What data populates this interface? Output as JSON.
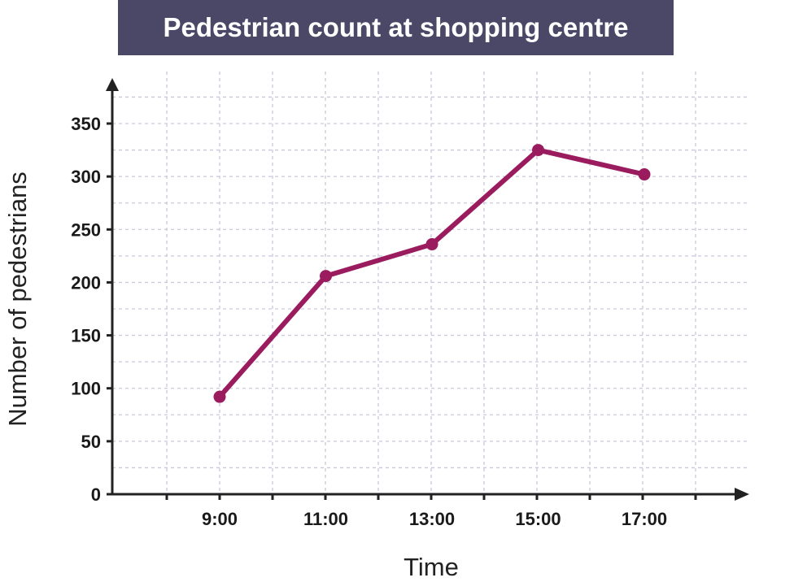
{
  "chart_data": {
    "type": "line",
    "title": "Pedestrian count at shopping centre",
    "xlabel": "Time",
    "ylabel": "Number of pedestrians",
    "categories": [
      "9:00",
      "11:00",
      "13:00",
      "15:00",
      "17:00"
    ],
    "values": [
      92,
      206,
      236,
      325,
      302
    ],
    "y_ticks": [
      0,
      50,
      100,
      150,
      200,
      250,
      300,
      350
    ],
    "ylim": [
      0,
      350
    ],
    "grid": true,
    "line_color": "#9b1b5f",
    "grid_color": "#c9c9dd",
    "axis_color": "#222222"
  }
}
